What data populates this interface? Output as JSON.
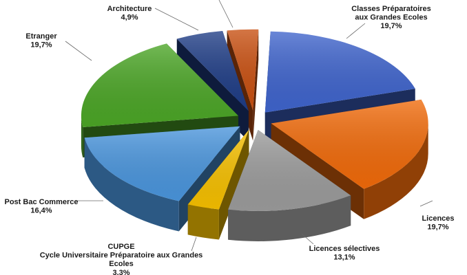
{
  "chart_data": {
    "type": "pie",
    "title": "",
    "style": "3d-exploded",
    "categories": [
      "Classes Préparatoires aux Grandes Ecoles",
      "Licences",
      "Licences sélectives",
      "CUPGE Cycle Universitaire Préparatoire aux Grandes Ecoles",
      "Post Bac Commerce",
      "Etranger",
      "Architecture",
      ""
    ],
    "values": [
      19.7,
      19.7,
      13.1,
      3.3,
      16.4,
      19.7,
      4.9,
      3.2
    ],
    "labels": [
      {
        "lines": [
          "Classes Préparatoires",
          "aux Grandes Ecoles",
          "19,7%"
        ]
      },
      {
        "lines": [
          "Licences",
          "19,7%"
        ]
      },
      {
        "lines": [
          "Licences sélectives",
          "13,1%"
        ]
      },
      {
        "lines": [
          "CUPGE",
          "Cycle Universitaire Préparatoire aux Grandes",
          "Ecoles",
          "3,3%"
        ]
      },
      {
        "lines": [
          "Post Bac Commerce",
          "16,4%"
        ]
      },
      {
        "lines": [
          "Etranger",
          "19,7%"
        ]
      },
      {
        "lines": [
          "Architecture",
          "4,9%"
        ]
      },
      {
        "lines": []
      }
    ],
    "colors": [
      "#3f64cc",
      "#f06a0a",
      "#9b9b9b",
      "#f5bf00",
      "#4a95dc",
      "#4ba526",
      "#1f3d86",
      "#c84f10"
    ]
  }
}
